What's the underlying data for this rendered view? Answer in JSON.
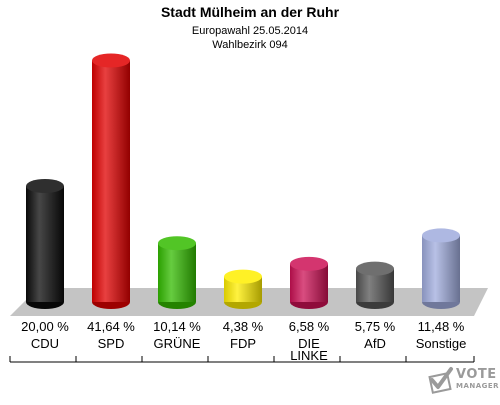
{
  "chart_data": {
    "type": "bar",
    "title": "Stadt Mülheim an der Ruhr",
    "subtitle": "Europawahl 25.05.2014",
    "subtitle2": "Wahlbezirk 094",
    "categories": [
      "CDU",
      "SPD",
      "GRÜNE",
      "FDP",
      "DIE LINKE",
      "AfD",
      "Sonstige"
    ],
    "value_labels": [
      "20,00 %",
      "41,64 %",
      "10,14 %",
      "4,38 %",
      "6,58 %",
      "5,75 %",
      "11,48 %"
    ],
    "values": [
      20.0,
      41.64,
      10.14,
      4.38,
      6.58,
      5.75,
      11.48
    ],
    "unit": "%",
    "colors": [
      "#0a0a0a",
      "#e00000",
      "#33bb00",
      "#ffee00",
      "#cc1155",
      "#555555",
      "#a0acdd"
    ],
    "xlabel": "",
    "ylabel": "",
    "grid": false
  },
  "brand": {
    "line1": "VOTE",
    "line2": "MANAGER",
    "icon": "ballot-check-icon"
  }
}
